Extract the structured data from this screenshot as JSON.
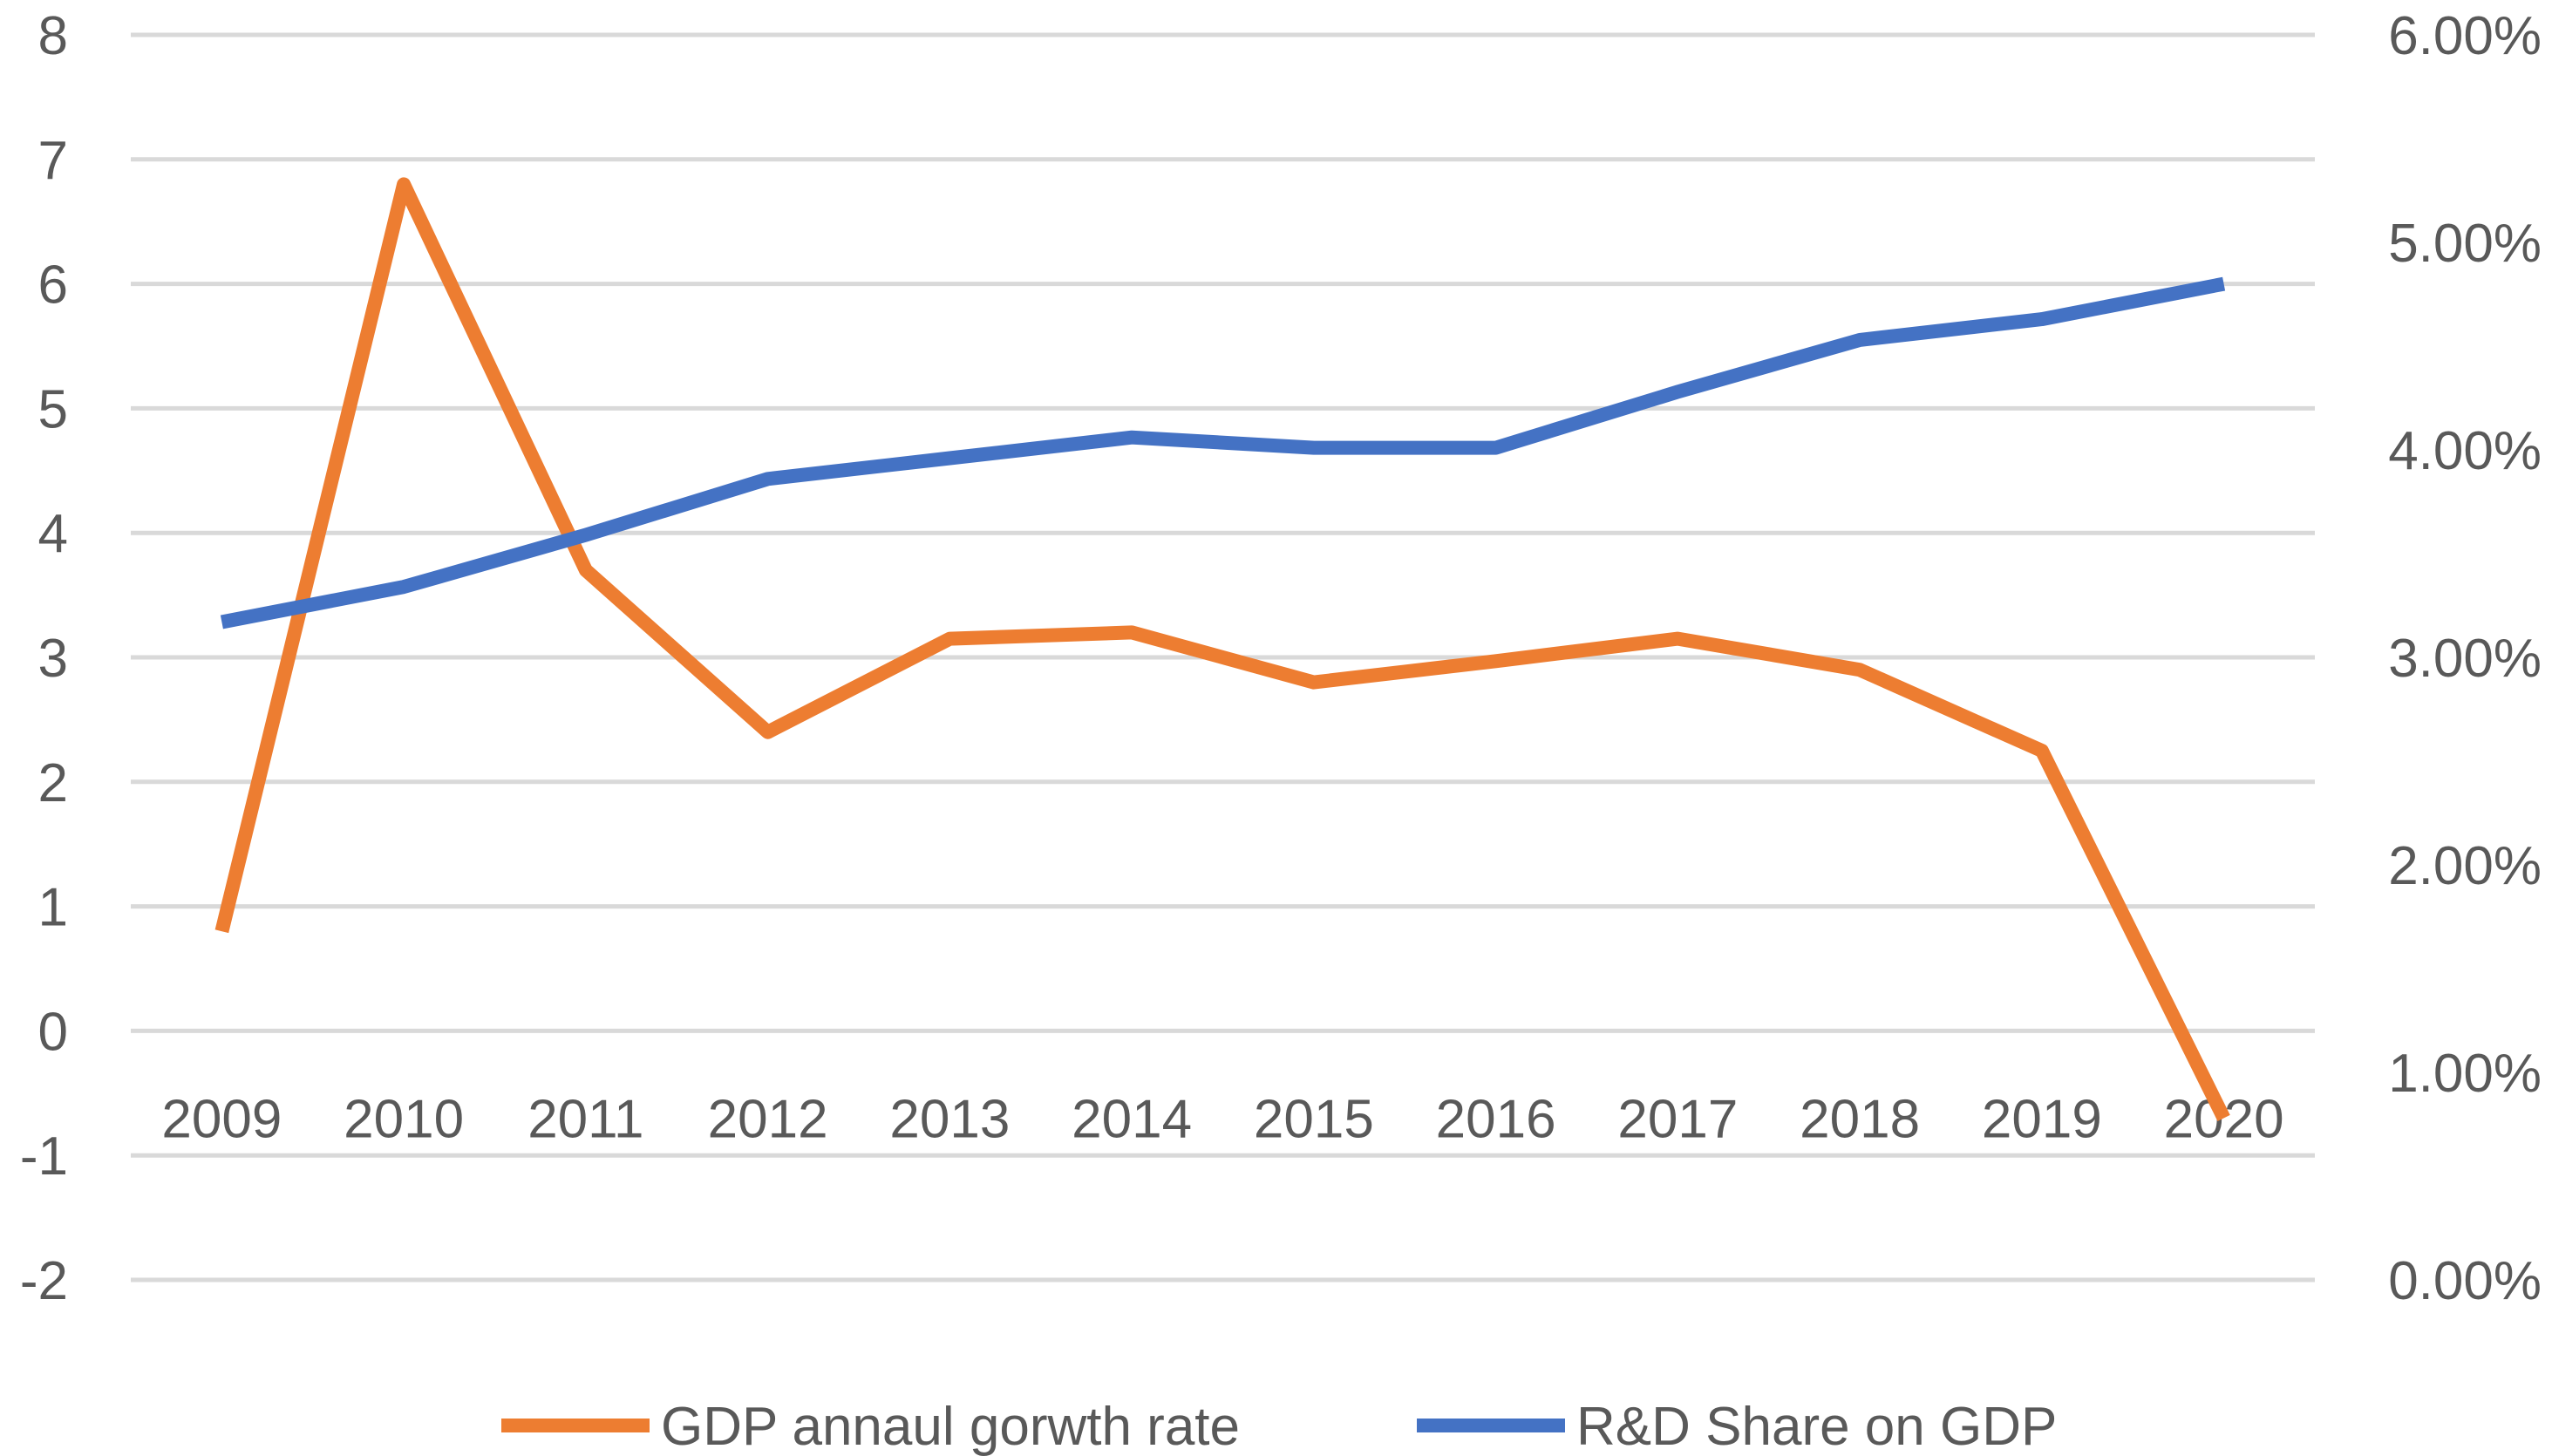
{
  "chart_data": {
    "type": "line",
    "title": "",
    "xlabel": "",
    "categories": [
      "2009",
      "2010",
      "2011",
      "2012",
      "2013",
      "2014",
      "2015",
      "2016",
      "2017",
      "2018",
      "2019",
      "2020"
    ],
    "left_axis": {
      "min": -2,
      "max": 8,
      "step": 1,
      "tick_labels": [
        "-2",
        "-1",
        "0",
        "1",
        "2",
        "3",
        "4",
        "5",
        "6",
        "7",
        "8"
      ]
    },
    "right_axis": {
      "min": 0,
      "max": 0.06,
      "step": 0.01,
      "tick_labels": [
        "0.00%",
        "1.00%",
        "2.00%",
        "3.00%",
        "4.00%",
        "5.00%",
        "6.00%"
      ]
    },
    "series": [
      {
        "name": "GDP annaul gorwth rate",
        "axis": "left",
        "color": "#ED7D31",
        "values": [
          0.8,
          6.8,
          3.7,
          2.4,
          3.15,
          3.2,
          2.8,
          2.97,
          3.15,
          2.9,
          2.25,
          -0.7
        ]
      },
      {
        "name": "R&D Share on GDP",
        "axis": "right",
        "color": "#4472C4",
        "values": [
          0.0317,
          0.0334,
          0.0359,
          0.0386,
          0.0396,
          0.0406,
          0.0401,
          0.0401,
          0.0428,
          0.0453,
          0.0463,
          0.048
        ]
      }
    ],
    "grid": true,
    "legend_position": "bottom"
  }
}
